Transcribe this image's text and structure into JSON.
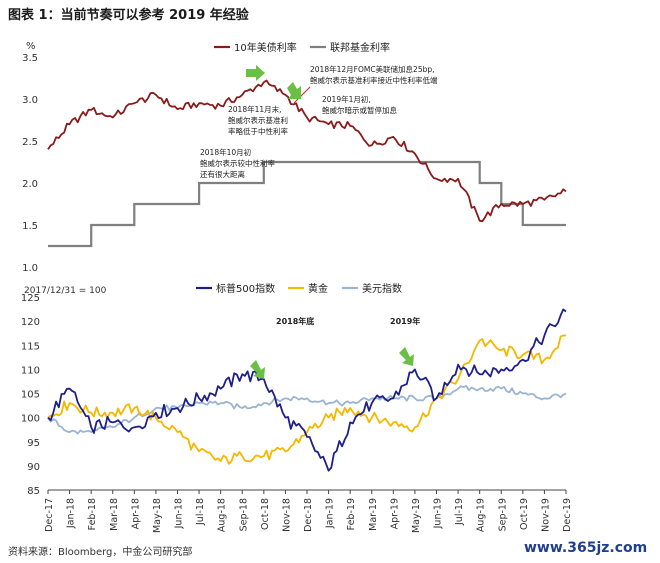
{
  "title": "图表 1：当前节奏可以参考 2019 年经验",
  "source": "资料来源：Bloomberg，中金公司研究部",
  "watermark": "www.365jz.com",
  "colors": {
    "treasury": "#8b1a1a",
    "fedfunds": "#7f7f7f",
    "spx": "#1f1f8a",
    "gold": "#f5b800",
    "usd": "#9ab4d2",
    "arrow": "#6abf45"
  },
  "chart_data": [
    {
      "type": "line",
      "yunit": "%",
      "ylim": [
        1.0,
        3.5
      ],
      "yticks": [
        "1.0",
        "1.5",
        "2.0",
        "2.5",
        "3.0",
        "3.5"
      ],
      "x": [
        "2017-12",
        "2018-01",
        "2018-02",
        "2018-03",
        "2018-04",
        "2018-05",
        "2018-06",
        "2018-07",
        "2018-08",
        "2018-09",
        "2018-10",
        "2018-11",
        "2018-12",
        "2019-01",
        "2019-02",
        "2019-03",
        "2019-04",
        "2019-05",
        "2019-06",
        "2019-07",
        "2019-08",
        "2019-09",
        "2019-10",
        "2019-11",
        "2019-12"
      ],
      "series": [
        {
          "name": "10年美债利率",
          "values": [
            2.4,
            2.7,
            2.87,
            2.78,
            2.95,
            3.05,
            2.88,
            2.95,
            2.92,
            3.05,
            3.2,
            3.05,
            2.78,
            2.7,
            2.68,
            2.45,
            2.55,
            2.35,
            2.05,
            2.05,
            1.55,
            1.75,
            1.75,
            1.8,
            1.9
          ]
        },
        {
          "name": "联邦基金利率",
          "values": [
            1.25,
            1.25,
            1.5,
            1.5,
            1.75,
            1.75,
            1.75,
            2.0,
            2.0,
            2.0,
            2.25,
            2.25,
            2.25,
            2.25,
            2.25,
            2.25,
            2.25,
            2.25,
            2.25,
            2.25,
            2.0,
            1.75,
            1.5,
            1.5,
            1.5
          ]
        }
      ],
      "annotations": [
        {
          "lines": [
            "2018年12月FOMC美联储加息25bp,",
            "鲍威尔表示基准利率接近中性利率低端"
          ]
        },
        {
          "lines": [
            "2018年11月末,",
            "鲍威尔表示基准利",
            "率略低于中性利率"
          ]
        },
        {
          "lines": [
            "2019年1月初,",
            "鲍威尔暗示或暂停加息"
          ]
        },
        {
          "lines": [
            "2018年10月初",
            "鲍威尔表示较中性利率",
            "还有很大距离"
          ]
        }
      ]
    },
    {
      "type": "line",
      "base_note": "2017/12/31 = 100",
      "ylim": [
        85,
        125
      ],
      "yticks": [
        "85",
        "90",
        "95",
        "100",
        "105",
        "110",
        "115",
        "120",
        "125"
      ],
      "xticks": [
        "Dec-17",
        "Jan-18",
        "Feb-18",
        "Mar-18",
        "Apr-18",
        "May-18",
        "Jun-18",
        "Jul-18",
        "Aug-18",
        "Sep-18",
        "Oct-18",
        "Nov-18",
        "Dec-18",
        "Jan-19",
        "Feb-19",
        "Mar-19",
        "Apr-19",
        "May-19",
        "Jun-19",
        "Jul-19",
        "Aug-19",
        "Sep-19",
        "Oct-19",
        "Nov-19",
        "Dec-19"
      ],
      "series": [
        {
          "name": "标普500指数",
          "values": [
            100,
            106,
            98,
            99,
            98,
            101,
            102,
            104,
            106,
            109,
            108,
            100,
            96,
            89,
            99,
            103,
            104,
            110,
            104,
            111,
            109,
            110,
            112,
            117,
            122
          ]
        },
        {
          "name": "黄金",
          "values": [
            100,
            103,
            101,
            101,
            102,
            100,
            97,
            93,
            91,
            92,
            92,
            93,
            97,
            100,
            102,
            100,
            99,
            98,
            104,
            108,
            116,
            114,
            113,
            112,
            117
          ]
        },
        {
          "name": "美元指数",
          "values": [
            100,
            97,
            97,
            98,
            100,
            102,
            102,
            103,
            103,
            102,
            103,
            104,
            104,
            103,
            103,
            104,
            104,
            104,
            104,
            106,
            106,
            106,
            105,
            104,
            105
          ]
        }
      ],
      "annotations": [
        {
          "text": "2018年底"
        },
        {
          "text": "2019年"
        }
      ]
    }
  ]
}
